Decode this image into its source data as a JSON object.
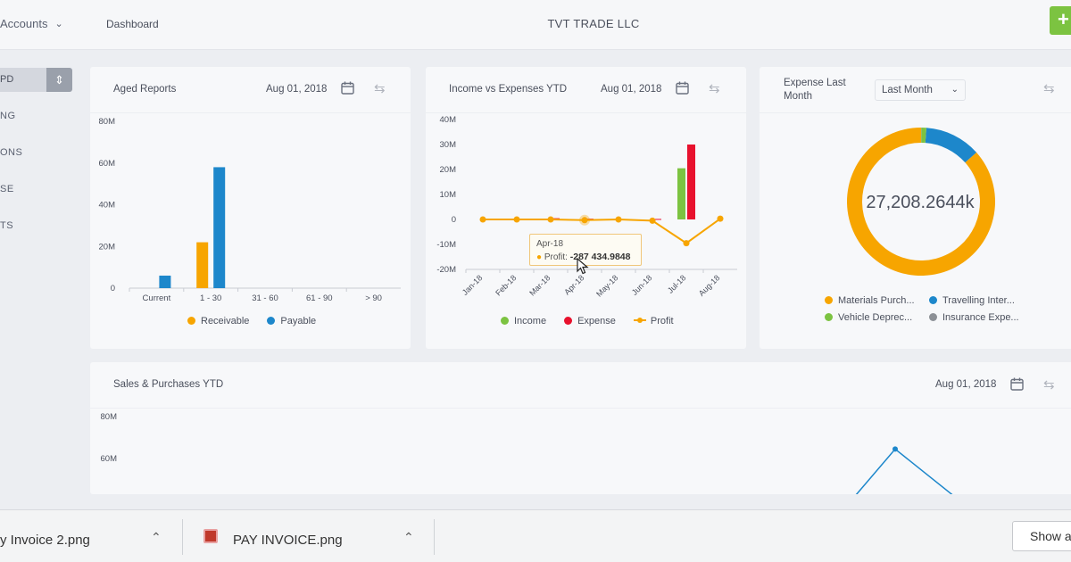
{
  "topbar": {
    "accounts": "Accounts",
    "crumb": "Dashboard",
    "company": "TVT TRADE LLC",
    "add_icon": "+"
  },
  "sidebar": {
    "items": [
      "PD",
      "NG",
      "ONS",
      "SE",
      "TS"
    ]
  },
  "colors": {
    "green": "#7cc341",
    "orange": "#f7a500",
    "blue": "#1d87cb",
    "red": "#e8112d",
    "gray": "#8c9096"
  },
  "aged": {
    "title": "Aged Reports",
    "date": "Aug 01, 2018",
    "legend": [
      "Receivable",
      "Payable"
    ],
    "chart_data": {
      "type": "bar",
      "categories": [
        "Current",
        "1 - 30",
        "31 - 60",
        "61 - 90",
        "> 90"
      ],
      "series": [
        {
          "name": "Receivable",
          "values": [
            0,
            22,
            0,
            0,
            0
          ]
        },
        {
          "name": "Payable",
          "values": [
            6,
            58,
            0,
            0,
            0
          ]
        }
      ],
      "yticks": [
        "0",
        "20M",
        "40M",
        "60M",
        "80M"
      ],
      "ylim": [
        0,
        80
      ]
    }
  },
  "income": {
    "title": "Income vs Expenses YTD",
    "date": "Aug 01, 2018",
    "legend": [
      "Income",
      "Expense",
      "Profit"
    ],
    "tooltip": {
      "month": "Apr-18",
      "label": "Profit:",
      "value": "-287 434.9848"
    },
    "chart_data": {
      "type": "bar",
      "categories": [
        "Jan-18",
        "Feb-18",
        "Mar-18",
        "Apr-18",
        "May-18",
        "Jun-18",
        "Jul-18",
        "Aug-18"
      ],
      "series": [
        {
          "name": "Income",
          "values": [
            0,
            0,
            0,
            0,
            0,
            0,
            20.5,
            0
          ]
        },
        {
          "name": "Expense",
          "values": [
            0,
            0,
            0.5,
            0.3,
            0,
            0.2,
            30,
            0
          ]
        },
        {
          "name": "Profit",
          "values": [
            0,
            0,
            0,
            -0.29,
            0,
            -0.5,
            -9.5,
            0.3
          ]
        }
      ],
      "yticks": [
        "-20M",
        "-10M",
        "0",
        "10M",
        "20M",
        "30M",
        "40M"
      ],
      "ylim": [
        -20,
        40
      ]
    }
  },
  "expense": {
    "title_1": "Expense Last",
    "title_2": "Month",
    "select": "Last Month",
    "center": "27,208.2644k",
    "legend": [
      "Materials Purch...",
      "Travelling Inter...",
      "Vehicle Deprec...",
      "Insurance Expe..."
    ],
    "chart_data": {
      "type": "pie",
      "labels": [
        "Materials Purch...",
        "Travelling Inter...",
        "Vehicle Deprec...",
        "Insurance Expe..."
      ],
      "values": [
        86.6,
        12.3,
        1.1,
        0.05
      ]
    }
  },
  "sales": {
    "title": "Sales & Purchases YTD",
    "date": "Aug 01, 2018",
    "chart_data": {
      "type": "line",
      "yticks": [
        "60M",
        "80M"
      ],
      "peak_value": 64.5
    }
  },
  "downloads": {
    "file1": "y Invoice 2.png",
    "file2": "PAY INVOICE.png",
    "show_all": "Show all"
  }
}
